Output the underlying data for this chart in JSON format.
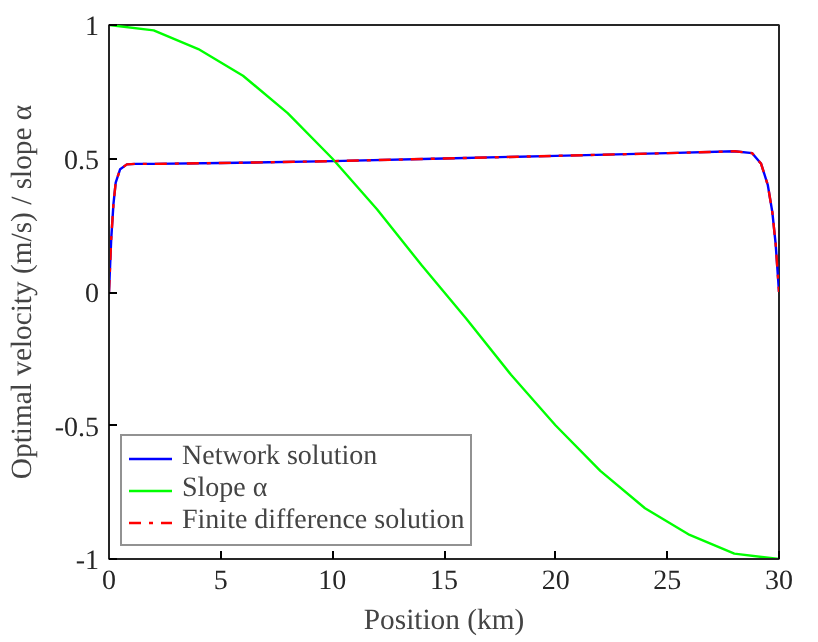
{
  "chart_data": {
    "type": "line",
    "xlabel": "Position (km)",
    "ylabel": "Optimal velocity (m/s) / slope α",
    "xlim": [
      0,
      30
    ],
    "ylim": [
      -1,
      1
    ],
    "xticks": [
      0,
      5,
      10,
      15,
      20,
      25,
      30
    ],
    "yticks": [
      {
        "value": -1,
        "label": "-1"
      },
      {
        "value": -0.5,
        "label": "-0.5"
      },
      {
        "value": 0,
        "label": "0"
      },
      {
        "value": 0.5,
        "label": "0.5"
      },
      {
        "value": 1,
        "label": "1"
      }
    ],
    "grid": false,
    "legend": "bottom left",
    "marker": "none",
    "series": [
      {
        "name": "Network solution",
        "color": "#0000ff",
        "line_style": "solid",
        "x": [
          0,
          0.1,
          0.2,
          0.3,
          0.5,
          0.8,
          1.2,
          2,
          5,
          10,
          15,
          20,
          25,
          28,
          28.8,
          29.2,
          29.5,
          29.7,
          29.85,
          30
        ],
        "values": [
          0,
          0.2,
          0.33,
          0.41,
          0.46,
          0.478,
          0.48,
          0.48,
          0.483,
          0.49,
          0.5,
          0.51,
          0.52,
          0.527,
          0.52,
          0.48,
          0.4,
          0.3,
          0.18,
          0
        ]
      },
      {
        "name": "Slope α",
        "color": "#00ff00",
        "line_style": "solid",
        "x": [
          0,
          2,
          4,
          6,
          8,
          10,
          12,
          14,
          15,
          16,
          18,
          20,
          22,
          24,
          26,
          28,
          30
        ],
        "values": [
          1,
          0.98,
          0.91,
          0.81,
          0.67,
          0.5,
          0.31,
          0.1,
          0,
          -0.1,
          -0.31,
          -0.5,
          -0.67,
          -0.81,
          -0.91,
          -0.98,
          -1
        ]
      },
      {
        "name": "Finite difference solution",
        "color": "#ff0000",
        "line_style": "dashdot",
        "x": [
          0,
          0.1,
          0.2,
          0.3,
          0.5,
          0.8,
          1.2,
          2,
          5,
          10,
          15,
          20,
          25,
          28,
          28.8,
          29.2,
          29.5,
          29.7,
          29.85,
          30
        ],
        "values": [
          0,
          0.2,
          0.33,
          0.41,
          0.46,
          0.478,
          0.48,
          0.48,
          0.483,
          0.49,
          0.5,
          0.51,
          0.52,
          0.527,
          0.52,
          0.48,
          0.4,
          0.3,
          0.18,
          0
        ]
      }
    ]
  }
}
